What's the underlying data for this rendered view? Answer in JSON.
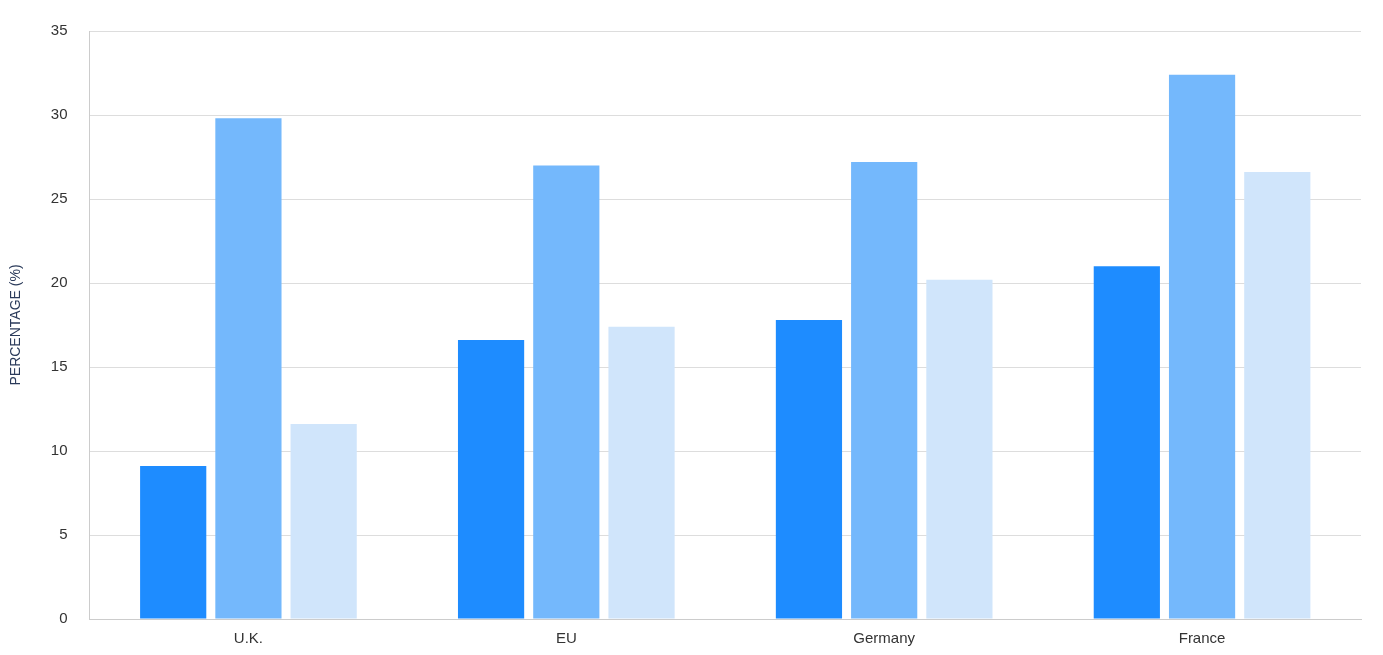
{
  "chart_data": {
    "type": "bar",
    "ylabel": "PERCENTAGE (%)",
    "categories": [
      "U.K.",
      "EU",
      "Germany",
      "France"
    ],
    "series": [
      {
        "color": "#1e8cff",
        "values": [
          9.1,
          16.6,
          17.8,
          21.0
        ]
      },
      {
        "color": "#74b8fc",
        "values": [
          29.8,
          27.0,
          27.2,
          32.4
        ]
      },
      {
        "color": "#d0e5fb",
        "values": [
          11.6,
          17.4,
          20.2,
          26.6
        ]
      }
    ],
    "ylim": [
      0,
      35
    ],
    "yticks": [
      0,
      5,
      10,
      15,
      20,
      25,
      30,
      35
    ],
    "grid": "y",
    "legend": false
  }
}
